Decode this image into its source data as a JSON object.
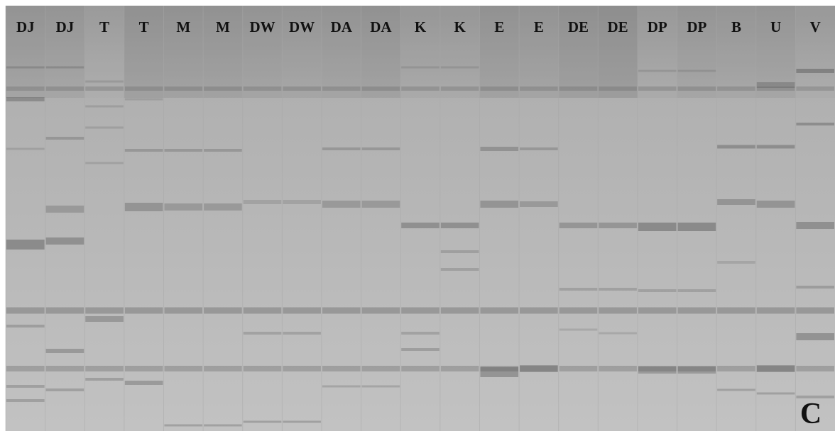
{
  "lanes": [
    "DJ",
    "DJ",
    "T",
    "T",
    "M",
    "M",
    "DW",
    "DW",
    "DA",
    "DA",
    "K",
    "K",
    "E",
    "E",
    "DE",
    "DE",
    "DP",
    "DP",
    "B",
    "U",
    "V"
  ],
  "panel_label": "C"
}
